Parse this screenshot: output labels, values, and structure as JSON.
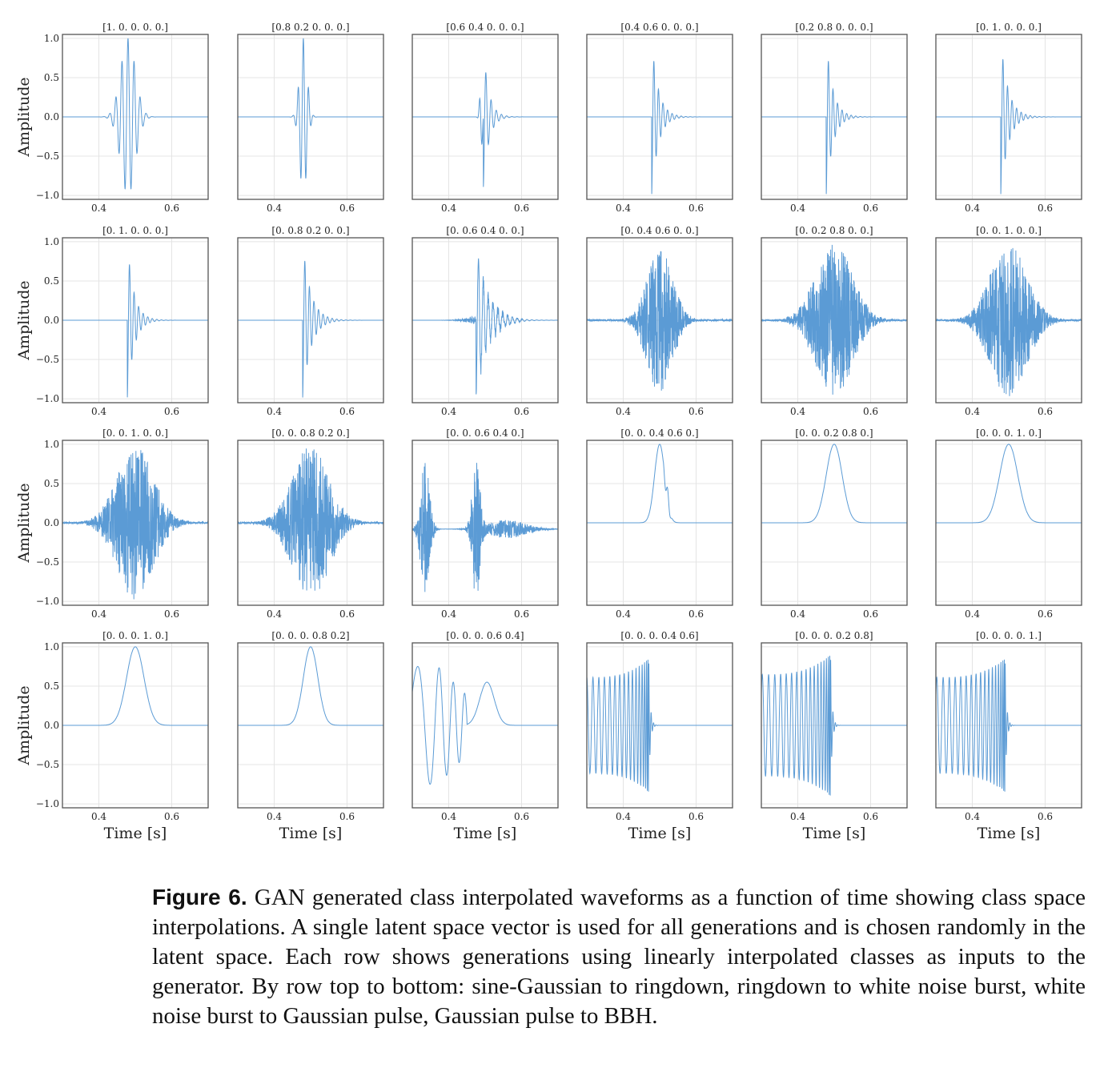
{
  "chart_data": {
    "type": "line",
    "layout": "grid 4 rows x 6 columns",
    "line_color": "#5b9bd5",
    "grid": true,
    "xlabel": "Time [s]",
    "ylabel": "Amplitude",
    "xlim": [
      0.3,
      0.7
    ],
    "ylim": [
      -1.05,
      1.05
    ],
    "xticks": [
      0.4,
      0.6
    ],
    "xtick_labels": [
      "0.4",
      "0.6"
    ],
    "yticks": [
      1.0,
      0.5,
      0.0,
      -0.5,
      -1.0
    ],
    "ytick_labels": [
      "1.0",
      "0.5",
      "0.0",
      "−0.5",
      "−1.0"
    ],
    "rows": [
      {
        "description": "sine-Gaussian to ringdown",
        "panels": [
          {
            "title": "[1. 0. 0. 0. 0.]",
            "kind": "sg",
            "t0": 0.48,
            "f": 60,
            "w": 0.02,
            "amp": 1.0
          },
          {
            "title": "[0.8 0.2 0. 0. 0.]",
            "kind": "sg",
            "t0": 0.48,
            "f": 70,
            "w": 0.01,
            "amp": 1.0
          },
          {
            "title": "[0.6 0.4 0. 0. 0.]",
            "kind": "rd",
            "t0": 0.495,
            "f": 70,
            "tau": 0.015,
            "amp": 0.9,
            "pre": 0.4
          },
          {
            "title": "[0.4 0.6 0. 0. 0.]",
            "kind": "rd",
            "t0": 0.478,
            "f": 80,
            "tau": 0.018,
            "amp": 1.0
          },
          {
            "title": "[0.2 0.8 0. 0. 0.]",
            "kind": "rd",
            "t0": 0.478,
            "f": 80,
            "tau": 0.018,
            "amp": 1.0
          },
          {
            "title": "[0. 1. 0. 0. 0.]",
            "kind": "rd",
            "t0": 0.478,
            "f": 80,
            "tau": 0.02,
            "amp": 1.0
          }
        ]
      },
      {
        "description": "ringdown to white noise burst",
        "panels": [
          {
            "title": "[0. 1. 0. 0. 0.]",
            "kind": "rd",
            "t0": 0.478,
            "f": 80,
            "tau": 0.018,
            "amp": 1.0
          },
          {
            "title": "[0. 0.8 0.2 0. 0.]",
            "kind": "rd",
            "t0": 0.478,
            "f": 80,
            "tau": 0.022,
            "amp": 1.0
          },
          {
            "title": "[0. 0.6 0.4 0. 0.]",
            "kind": "rd",
            "t0": 0.475,
            "f": 75,
            "tau": 0.03,
            "amp": 1.0,
            "noise": 0.15
          },
          {
            "title": "[0. 0.4 0.6 0. 0.]",
            "kind": "wn",
            "t0": 0.5,
            "w": 0.035,
            "amp": 0.8,
            "seed": 3
          },
          {
            "title": "[0. 0.2 0.8 0. 0.]",
            "kind": "wn",
            "t0": 0.5,
            "w": 0.05,
            "amp": 0.85,
            "seed": 5
          },
          {
            "title": "[0. 0. 1. 0. 0.]",
            "kind": "wn",
            "t0": 0.5,
            "w": 0.05,
            "amp": 0.85,
            "seed": 7
          }
        ]
      },
      {
        "description": "white noise burst to Gaussian pulse",
        "panels": [
          {
            "title": "[0. 0. 1. 0. 0.]",
            "kind": "wn",
            "t0": 0.5,
            "w": 0.05,
            "amp": 0.85,
            "seed": 11
          },
          {
            "title": "[0. 0. 0.8 0.2 0.]",
            "kind": "wn",
            "t0": 0.5,
            "w": 0.05,
            "amp": 0.85,
            "seed": 13
          },
          {
            "title": "[0. 0. 0.6 0.4 0.]",
            "kind": "mix",
            "seed": 17
          },
          {
            "title": "[0. 0. 0.4 0.6 0.]",
            "kind": "gp",
            "t0": 0.5,
            "w": 0.014,
            "amp": 1.0,
            "ripple": 0.15
          },
          {
            "title": "[0. 0. 0.2 0.8 0.]",
            "kind": "gp",
            "t0": 0.5,
            "w": 0.022,
            "amp": 1.0
          },
          {
            "title": "[0. 0. 0. 1. 0.]",
            "kind": "gp",
            "t0": 0.5,
            "w": 0.025,
            "amp": 1.0
          }
        ]
      },
      {
        "description": "Gaussian pulse to BBH",
        "panels": [
          {
            "title": "[0. 0. 0. 1. 0.]",
            "kind": "gp",
            "t0": 0.5,
            "w": 0.024,
            "amp": 1.0
          },
          {
            "title": "[0. 0. 0. 0.8 0.2]",
            "kind": "gp",
            "t0": 0.5,
            "w": 0.02,
            "amp": 1.0
          },
          {
            "title": "[0. 0. 0. 0.6 0.4]",
            "kind": "bbhmix"
          },
          {
            "title": "[0. 0. 0. 0.4 0.6]",
            "kind": "bbh",
            "tc": 0.47,
            "amp": 0.85
          },
          {
            "title": "[0. 0. 0. 0.2 0.8]",
            "kind": "bbh",
            "tc": 0.49,
            "amp": 0.9
          },
          {
            "title": "[0. 0. 0. 0. 1.]",
            "kind": "bbh",
            "tc": 0.49,
            "amp": 0.85
          }
        ]
      }
    ]
  },
  "caption": {
    "label": "Figure 6.",
    "text": "GAN generated class interpolated waveforms as a function of time showing class space interpolations. A single latent space vector is used for all generations and is chosen randomly in the latent space. Each row shows generations using linearly interpolated classes as inputs to the generator. By row top to bottom: sine-Gaussian to ringdown, ringdown to white noise burst, white noise burst to Gaussian pulse, Gaussian pulse to BBH."
  }
}
